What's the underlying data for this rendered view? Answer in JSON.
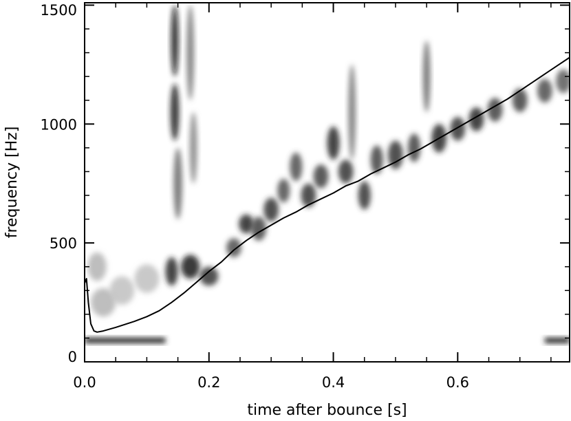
{
  "chart_data": {
    "type": "heatmap",
    "title": "",
    "xlabel": "time after bounce [s]",
    "ylabel": "frequency [Hz]",
    "xlim": [
      0.0,
      0.78
    ],
    "ylim": [
      0,
      1510
    ],
    "xticks": [
      {
        "value": 0.0,
        "label": "0.0"
      },
      {
        "value": 0.2,
        "label": "0.2"
      },
      {
        "value": 0.4,
        "label": "0.4"
      },
      {
        "value": 0.6,
        "label": "0.6"
      }
    ],
    "yticks": [
      {
        "value": 0,
        "label": "0"
      },
      {
        "value": 500,
        "label": "500"
      },
      {
        "value": 1000,
        "label": "1000"
      },
      {
        "value": 1500,
        "label": "1500"
      }
    ],
    "colormap": "white-to-black (grayscale, darker = stronger power)",
    "grid": false,
    "legend": "none",
    "overlay_line": {
      "name": "",
      "color": "#000000",
      "x": [
        0.0,
        0.003,
        0.006,
        0.01,
        0.015,
        0.02,
        0.03,
        0.05,
        0.08,
        0.1,
        0.12,
        0.14,
        0.16,
        0.18,
        0.2,
        0.22,
        0.24,
        0.26,
        0.28,
        0.3,
        0.32,
        0.34,
        0.36,
        0.38,
        0.4,
        0.42,
        0.44,
        0.46,
        0.48,
        0.5,
        0.52,
        0.54,
        0.56,
        0.58,
        0.6,
        0.62,
        0.64,
        0.66,
        0.68,
        0.7,
        0.72,
        0.74,
        0.76,
        0.78
      ],
      "y": [
        330,
        350,
        250,
        160,
        130,
        125,
        130,
        145,
        170,
        190,
        215,
        250,
        290,
        335,
        380,
        420,
        470,
        510,
        545,
        575,
        605,
        630,
        660,
        685,
        710,
        740,
        760,
        790,
        815,
        840,
        870,
        895,
        925,
        955,
        985,
        1015,
        1045,
        1075,
        1105,
        1140,
        1175,
        1210,
        1245,
        1280
      ]
    },
    "baseline_band": {
      "y": 90,
      "note": "persistent dark band near 90 Hz at start and end"
    },
    "intensity_blobs": [
      {
        "x": 0.145,
        "y": 1350,
        "rx": 0.006,
        "ry": 150,
        "level": 0.95
      },
      {
        "x": 0.145,
        "y": 1050,
        "rx": 0.007,
        "ry": 120,
        "level": 0.9
      },
      {
        "x": 0.15,
        "y": 750,
        "rx": 0.007,
        "ry": 150,
        "level": 0.6
      },
      {
        "x": 0.17,
        "y": 1300,
        "rx": 0.006,
        "ry": 200,
        "level": 0.55
      },
      {
        "x": 0.175,
        "y": 900,
        "rx": 0.006,
        "ry": 150,
        "level": 0.5
      },
      {
        "x": 0.14,
        "y": 380,
        "rx": 0.01,
        "ry": 60,
        "level": 0.85
      },
      {
        "x": 0.17,
        "y": 400,
        "rx": 0.015,
        "ry": 50,
        "level": 0.9
      },
      {
        "x": 0.2,
        "y": 360,
        "rx": 0.015,
        "ry": 40,
        "level": 0.8
      },
      {
        "x": 0.24,
        "y": 480,
        "rx": 0.012,
        "ry": 40,
        "level": 0.7
      },
      {
        "x": 0.26,
        "y": 580,
        "rx": 0.012,
        "ry": 40,
        "level": 0.85
      },
      {
        "x": 0.28,
        "y": 560,
        "rx": 0.012,
        "ry": 50,
        "level": 0.75
      },
      {
        "x": 0.3,
        "y": 640,
        "rx": 0.012,
        "ry": 50,
        "level": 0.8
      },
      {
        "x": 0.32,
        "y": 720,
        "rx": 0.01,
        "ry": 50,
        "level": 0.7
      },
      {
        "x": 0.34,
        "y": 820,
        "rx": 0.01,
        "ry": 60,
        "level": 0.7
      },
      {
        "x": 0.36,
        "y": 700,
        "rx": 0.012,
        "ry": 50,
        "level": 0.8
      },
      {
        "x": 0.38,
        "y": 780,
        "rx": 0.012,
        "ry": 50,
        "level": 0.75
      },
      {
        "x": 0.4,
        "y": 920,
        "rx": 0.01,
        "ry": 70,
        "level": 0.85
      },
      {
        "x": 0.42,
        "y": 800,
        "rx": 0.012,
        "ry": 50,
        "level": 0.8
      },
      {
        "x": 0.43,
        "y": 1050,
        "rx": 0.006,
        "ry": 200,
        "level": 0.55
      },
      {
        "x": 0.45,
        "y": 700,
        "rx": 0.01,
        "ry": 60,
        "level": 0.8
      },
      {
        "x": 0.47,
        "y": 850,
        "rx": 0.01,
        "ry": 60,
        "level": 0.75
      },
      {
        "x": 0.5,
        "y": 870,
        "rx": 0.012,
        "ry": 60,
        "level": 0.8
      },
      {
        "x": 0.53,
        "y": 900,
        "rx": 0.01,
        "ry": 60,
        "level": 0.75
      },
      {
        "x": 0.55,
        "y": 1200,
        "rx": 0.006,
        "ry": 150,
        "level": 0.6
      },
      {
        "x": 0.57,
        "y": 940,
        "rx": 0.012,
        "ry": 60,
        "level": 0.85
      },
      {
        "x": 0.6,
        "y": 980,
        "rx": 0.012,
        "ry": 50,
        "level": 0.8
      },
      {
        "x": 0.63,
        "y": 1020,
        "rx": 0.012,
        "ry": 50,
        "level": 0.85
      },
      {
        "x": 0.66,
        "y": 1060,
        "rx": 0.012,
        "ry": 50,
        "level": 0.75
      },
      {
        "x": 0.7,
        "y": 1100,
        "rx": 0.012,
        "ry": 50,
        "level": 0.75
      },
      {
        "x": 0.74,
        "y": 1140,
        "rx": 0.012,
        "ry": 50,
        "level": 0.7
      },
      {
        "x": 0.77,
        "y": 1180,
        "rx": 0.012,
        "ry": 50,
        "level": 0.65
      },
      {
        "x": 0.02,
        "y": 400,
        "rx": 0.015,
        "ry": 60,
        "level": 0.3
      },
      {
        "x": 0.03,
        "y": 250,
        "rx": 0.02,
        "ry": 60,
        "level": 0.3
      },
      {
        "x": 0.06,
        "y": 300,
        "rx": 0.02,
        "ry": 60,
        "level": 0.25
      },
      {
        "x": 0.1,
        "y": 350,
        "rx": 0.02,
        "ry": 60,
        "level": 0.25
      }
    ]
  }
}
